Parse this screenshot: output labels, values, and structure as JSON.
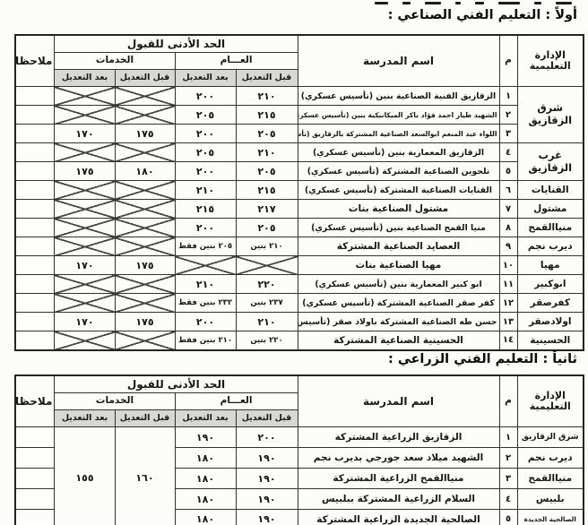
{
  "palette": {
    "ink": "#161616",
    "paper": "#fcfcf9",
    "subheader_shade": "#d8d7d2"
  },
  "sections": [
    {
      "title": "أولاً : التعليم الفني الصناعي :"
    },
    {
      "title": "ثانياً : التعليم الفني الزراعي :"
    }
  ],
  "header": {
    "admin": "الإدارة التعليمية",
    "num": "م",
    "school": "اسم المدرسة",
    "min_accept": "الحد الأدنى للقبول",
    "general": "العـــام",
    "services": "الخدمات",
    "before": "قبل التعديل",
    "after": "بعد التعديل",
    "notes": "ملاحظات"
  },
  "table1": {
    "rows": [
      {
        "admin": "شرق الزقازيق",
        "admin_rowspan": 3,
        "num": "١",
        "school": "الزقازيق الفنية الصناعية بنين (تأسيس عسكري)",
        "g_before": "٢١٠",
        "g_after": "٢٠٠",
        "s_before": null,
        "s_after": null
      },
      {
        "num": "٢",
        "school": "الشهيد طيار احمد فؤاد باكر الميكانيكية بنين (تأسيس عسكري)",
        "g_before": "٢١٥",
        "g_after": "٢٠٥",
        "s_before": null,
        "s_after": null
      },
      {
        "num": "٣",
        "school": "اللواء عبد المنعم ابوالسعد الصناعية المشتركة بالزقازيق (تأسيس عسكري)",
        "g_before": "٢٠٥",
        "g_after": "٢٠٠",
        "s_before": "١٧٥",
        "s_after": "١٧٠"
      },
      {
        "admin": "غرب الزقازيق",
        "admin_rowspan": 2,
        "num": "٤",
        "school": "الزقازيق المعمارية بنين (تأسيس عسكري)",
        "g_before": "٢١٠",
        "g_after": "٢٠٥",
        "s_before": null,
        "s_after": null
      },
      {
        "num": "٥",
        "school": "تلحوين الصناعية المشتركة (تأسيس عسكري)",
        "g_before": "٢٠٥",
        "g_after": "٢٠٠",
        "s_before": "١٨٠",
        "s_after": "١٧٥"
      },
      {
        "admin": "القنايات",
        "num": "٦",
        "school": "القنايات الصناعية المشتركة (تأسيس عسكري)",
        "g_before": "٢١٥",
        "g_after": "٢١٠",
        "s_before": null,
        "s_after": null
      },
      {
        "admin": "مشتول",
        "num": "٧",
        "school": "مشتول الصناعية بنات",
        "g_before": "٢١٧",
        "g_after": "٢١٥",
        "s_before": null,
        "s_after": null
      },
      {
        "admin": "منياالقمح",
        "num": "٨",
        "school": "منيا القمح الصناعية بنين (تأسيس عسكري)",
        "g_before": "٢٠٥",
        "g_after": "٢٠٠",
        "s_before": null,
        "s_after": null
      },
      {
        "admin": "ديرب نجم",
        "num": "٩",
        "school": "العصايد الصناعية المشتركة",
        "g_before": "٢١٠ بنين",
        "g_after": "٢٠٥ بنين فقط",
        "s_before": null,
        "s_after": null
      },
      {
        "admin": "مهيا",
        "num": "١٠",
        "school": "مهيا الصناعية بنات",
        "g_before": null,
        "g_after": null,
        "s_before": "١٧٥",
        "s_after": "١٧٠"
      },
      {
        "admin": "ابوكبير",
        "num": "١١",
        "school": "ابو كبير المعمارية بنين (تأسيس عسكري)",
        "g_before": "٢٢٠",
        "g_after": "٢١٠",
        "s_before": null,
        "s_after": null
      },
      {
        "admin": "كفرصقر",
        "num": "١٢",
        "school": "كفر صقر الصناعية المشتركة (تأسيس عسكري)",
        "g_before": "٢٣٧ بنين",
        "g_after": "٢٣٢ بنين فقط",
        "s_before": null,
        "s_after": null
      },
      {
        "admin": "اولادصقر",
        "num": "١٣",
        "school": "حسن طه الصناعية المشتركة باولاد صقر (تأسيس عسكري)",
        "g_before": "٢١٠",
        "g_after": "٢٠٠",
        "s_before": "١٧٥",
        "s_after": "١٧٠"
      },
      {
        "admin": "الحسينية",
        "num": "١٤",
        "school": "الحسينية الصناعية المشتركة",
        "g_before": "٢٢٠ بنين",
        "g_after": "٢١٠ بنين فقط",
        "s_before": null,
        "s_after": null
      }
    ]
  },
  "table2": {
    "rows": [
      {
        "admin": "شرق الزقازيق",
        "num": "١",
        "school": "الزقازيق الزراعية المشتركة",
        "g_before": "٢٠٠",
        "g_after": "١٩٠",
        "s_before": "١٦٠",
        "s_before_rowspan": 5,
        "s_after": "١٥٥",
        "s_after_rowspan": 5
      },
      {
        "admin": "ديرب نجم",
        "num": "٢",
        "school": "الشهيد ميلاد سعد جورجي بديرب نجم",
        "g_before": "١٩٠",
        "g_after": "١٨٠"
      },
      {
        "admin": "منياالقمح",
        "num": "٣",
        "school": "منياالقمح الزراعية المشتركة",
        "g_before": "١٩٠",
        "g_after": "١٨٠"
      },
      {
        "admin": "بلبيس",
        "num": "٤",
        "school": "السلام الزراعية المشتركة ببلبيس",
        "g_before": "١٩٠",
        "g_after": "١٨٠"
      },
      {
        "admin": "الصالحية الجديدة",
        "num": "٥",
        "school": "الصالحية الجديدة الزراعية المشتركة",
        "g_before": "١٩٠",
        "g_after": "١٨٠"
      }
    ]
  }
}
